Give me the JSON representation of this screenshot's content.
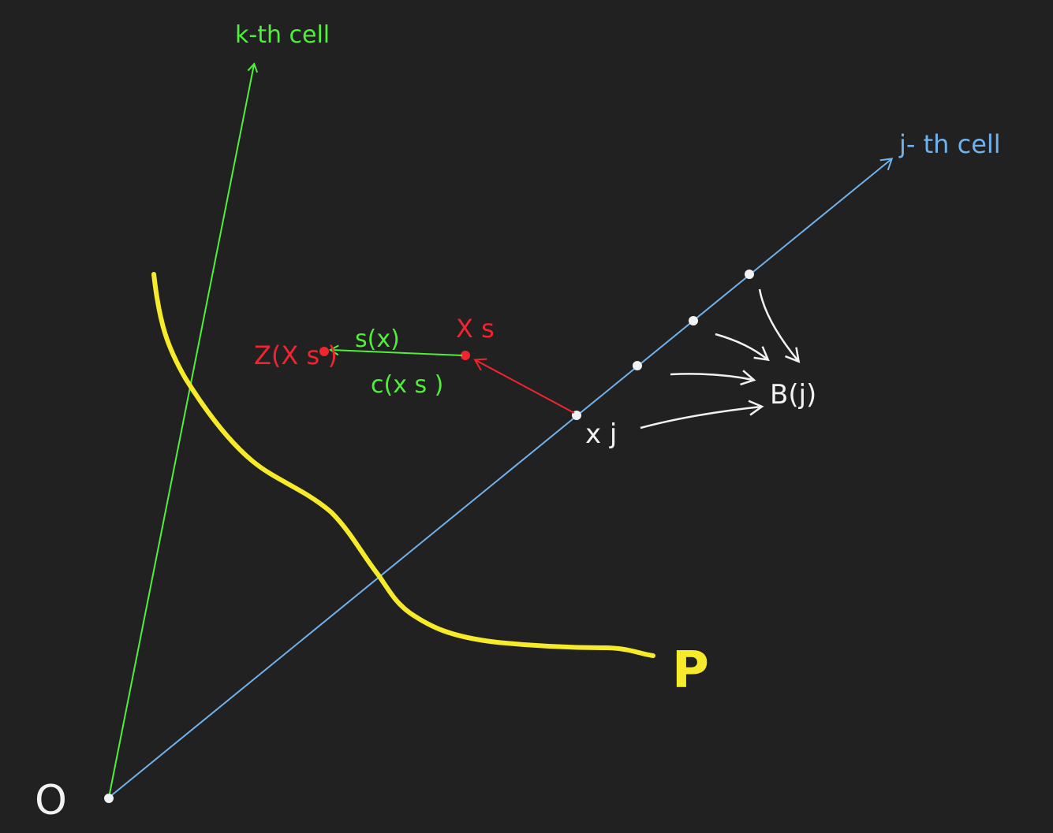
{
  "labels": {
    "k_cell": "k-th cell",
    "j_cell": "j- th cell",
    "x_s": "X s",
    "z_xs": "Z(X s )",
    "s_x": "s(x)",
    "c_xs": "c(x s )",
    "x_j": "x j",
    "b_j": "B(j)",
    "p": "P",
    "origin": "O"
  },
  "colors": {
    "background": "#222121",
    "green": "#4ef03a",
    "blue": "#6fb3ee",
    "red": "#f0252f",
    "white": "#f2f2f2",
    "yellow": "#f6ea2b"
  }
}
